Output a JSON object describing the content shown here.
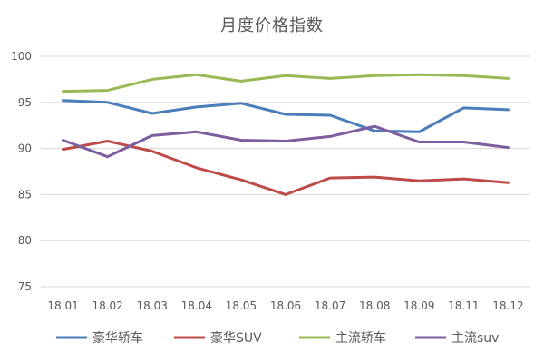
{
  "chart_data": {
    "type": "line",
    "title": "月度价格指数",
    "xlabel": "",
    "ylabel": "",
    "categories": [
      "18.01",
      "18.02",
      "18.03",
      "18.04",
      "18.05",
      "18.06",
      "18.07",
      "18.08",
      "18.09",
      "18.11",
      "18.12"
    ],
    "ylim": [
      75,
      100
    ],
    "yticks": [
      75,
      80,
      85,
      90,
      95,
      100
    ],
    "grid": true,
    "legend_position": "bottom",
    "series": [
      {
        "name": "豪华轿车",
        "color": "#4a7ebb",
        "values": [
          95.2,
          95.0,
          93.8,
          94.5,
          94.9,
          93.7,
          93.6,
          91.9,
          91.8,
          94.4,
          94.2
        ]
      },
      {
        "name": "豪华SUV",
        "color": "#be4b48",
        "values": [
          89.9,
          90.8,
          89.7,
          87.9,
          86.6,
          85.0,
          86.8,
          86.9,
          86.5,
          86.7,
          86.3
        ]
      },
      {
        "name": "主流轿车",
        "color": "#98b954",
        "values": [
          96.2,
          96.3,
          97.5,
          98.0,
          97.3,
          97.9,
          97.6,
          97.9,
          98.0,
          97.9,
          97.6
        ]
      },
      {
        "name": "主流suv",
        "color": "#7d5fa0",
        "values": [
          90.9,
          89.1,
          91.4,
          91.8,
          90.9,
          90.8,
          91.3,
          92.4,
          90.7,
          90.7,
          90.1
        ]
      }
    ]
  }
}
